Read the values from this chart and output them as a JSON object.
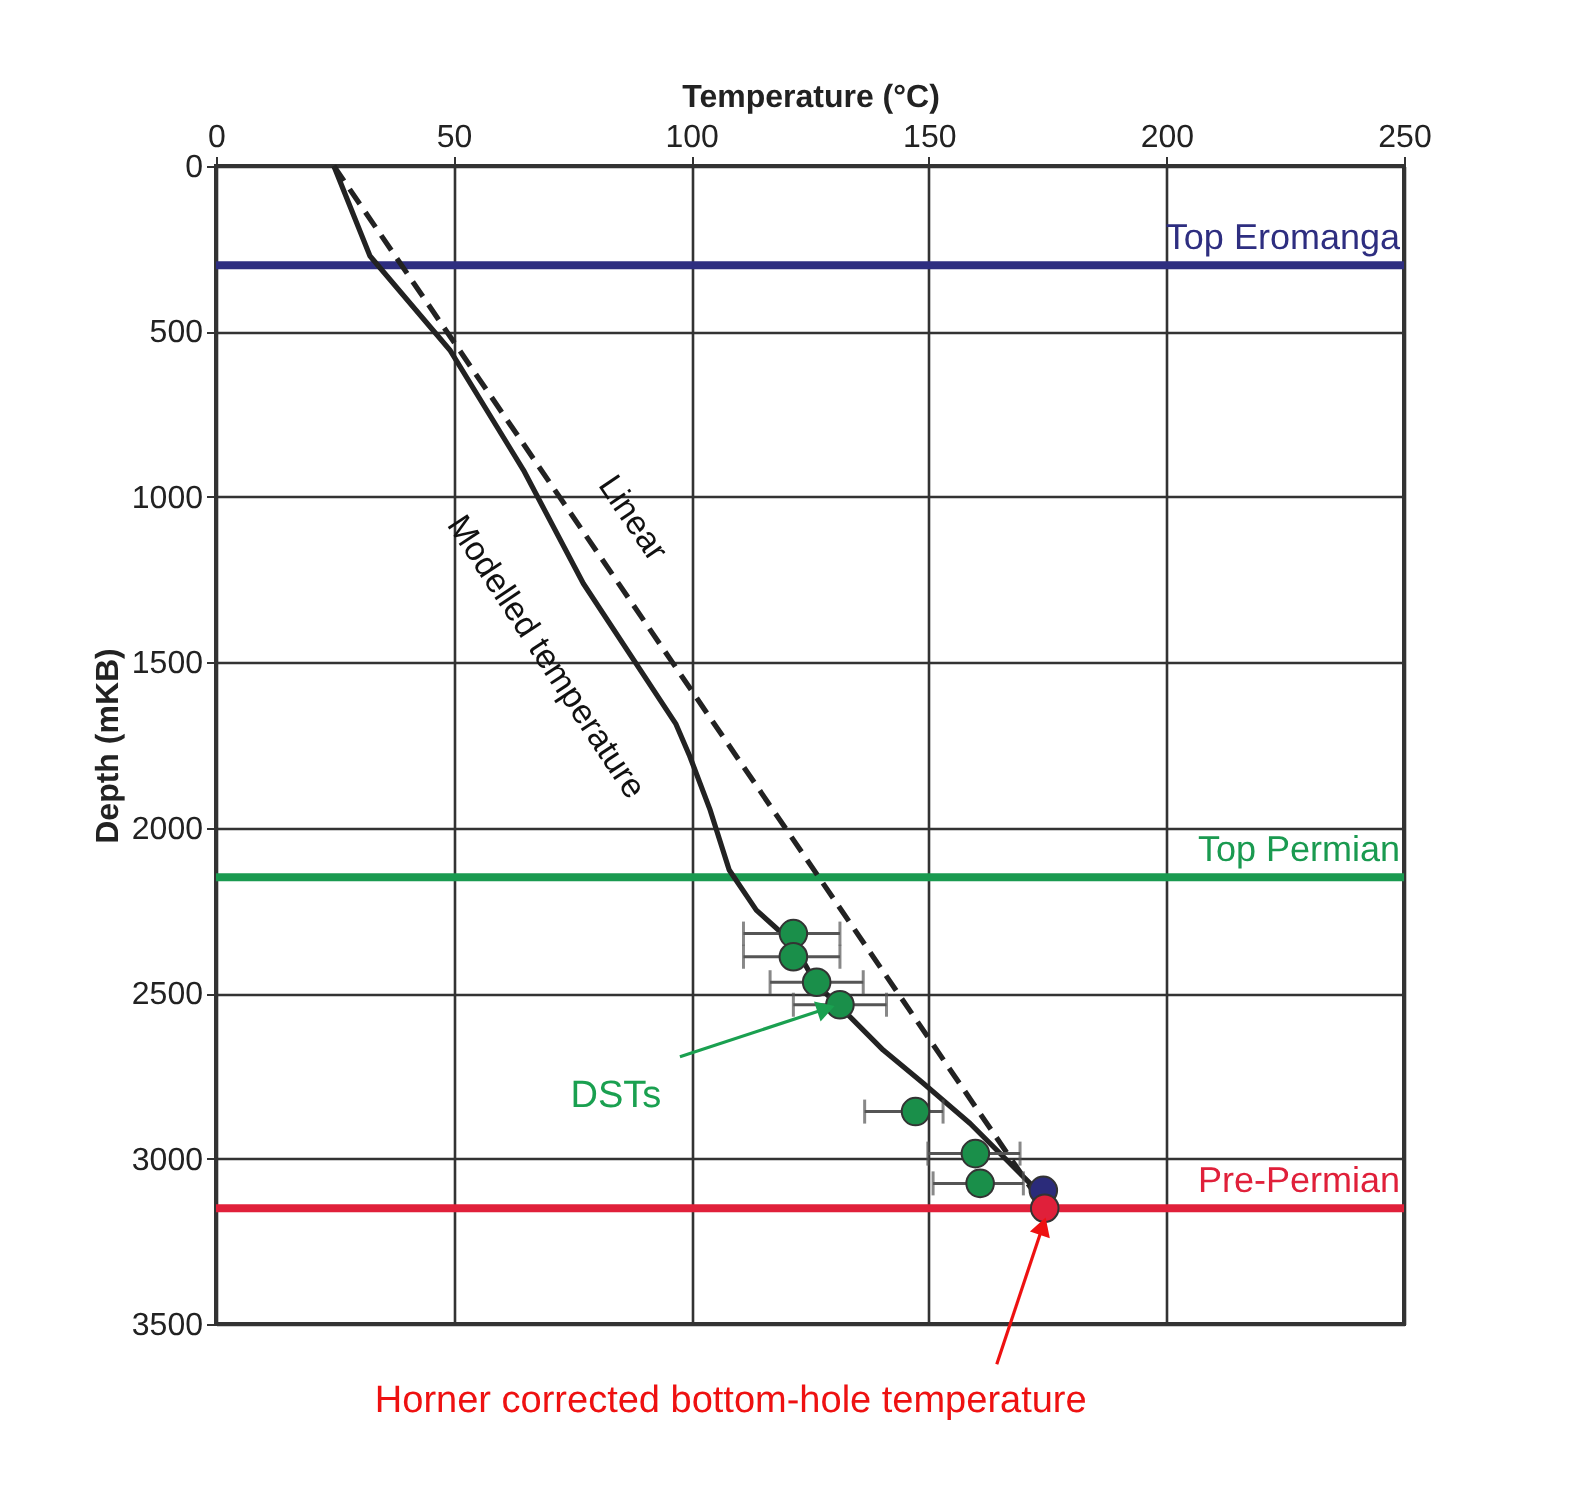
{
  "chart_data": {
    "type": "line",
    "xlabel": "Temperature (°C)",
    "ylabel": "Depth (mKB)",
    "xlim": [
      0,
      250
    ],
    "xticks": [
      0,
      50,
      100,
      150,
      200,
      250
    ],
    "ylim": [
      3500,
      0
    ],
    "yticks": [
      0,
      500,
      1000,
      1500,
      2000,
      2500,
      3000,
      3500
    ],
    "grid": true,
    "series": [
      {
        "name": "Modelled temperature",
        "color": "#222222",
        "line_style": "solid",
        "x": [
          24.8,
          32.4,
          49.2,
          64.7,
          77.3,
          96.8,
          99.7,
          104,
          108,
          113.7,
          121.5,
          126.3,
          132,
          140.4,
          148.9,
          158.7,
          171.3,
          172.6
        ],
        "values": [
          0,
          272,
          556,
          919,
          1262,
          1687,
          1784,
          1947,
          2128,
          2249,
          2350,
          2473,
          2551,
          2672,
          2773,
          2894,
          3075,
          3106
        ]
      },
      {
        "name": "Linear",
        "color": "#222222",
        "line_style": "dashed",
        "x": [
          24.8,
          172
        ],
        "values": [
          0,
          3100
        ]
      },
      {
        "type": "scatter",
        "color": "#1a8f4a",
        "marker": "circle",
        "x": [
          121.5,
          121.5,
          126.4,
          131.3,
          147.2,
          159.8,
          160.8
        ],
        "values": [
          2320,
          2390,
          2467,
          2535,
          2858,
          2985,
          3075
        ],
        "xerrors": [
          [
            111.0,
            131.3
          ],
          [
            111.0,
            131.3
          ],
          [
            116.6,
            136.2
          ],
          [
            121.5,
            141.1
          ],
          [
            136.5,
            153.0
          ],
          [
            149.8,
            169.2
          ],
          [
            150.9,
            169.9
          ]
        ]
      },
      {
        "type": "scatter",
        "color": "#2b2b7a",
        "marker": "circle",
        "x": [
          174.1
        ],
        "values": [
          3096
        ]
      },
      {
        "type": "scatter",
        "color": "#e0203a",
        "marker": "circle",
        "x": [
          174.4
        ],
        "values": [
          3150
        ]
      }
    ],
    "ref_lines": [
      {
        "axis": "y",
        "value": 300,
        "label": "Top Eromanga",
        "color": "#2e2e80"
      },
      {
        "axis": "y",
        "value": 2150,
        "label": "Top Permian",
        "color": "#1a9a50"
      },
      {
        "axis": "y",
        "value": 3150,
        "label": "Pre-Permian",
        "color": "#e0203a"
      }
    ],
    "annotations": [
      {
        "text": "DSTs",
        "x": 131.3,
        "y": 2535
      },
      {
        "text": "Horner corrected bottom-hole temperature",
        "x": 174.4,
        "y": 3150
      }
    ]
  }
}
